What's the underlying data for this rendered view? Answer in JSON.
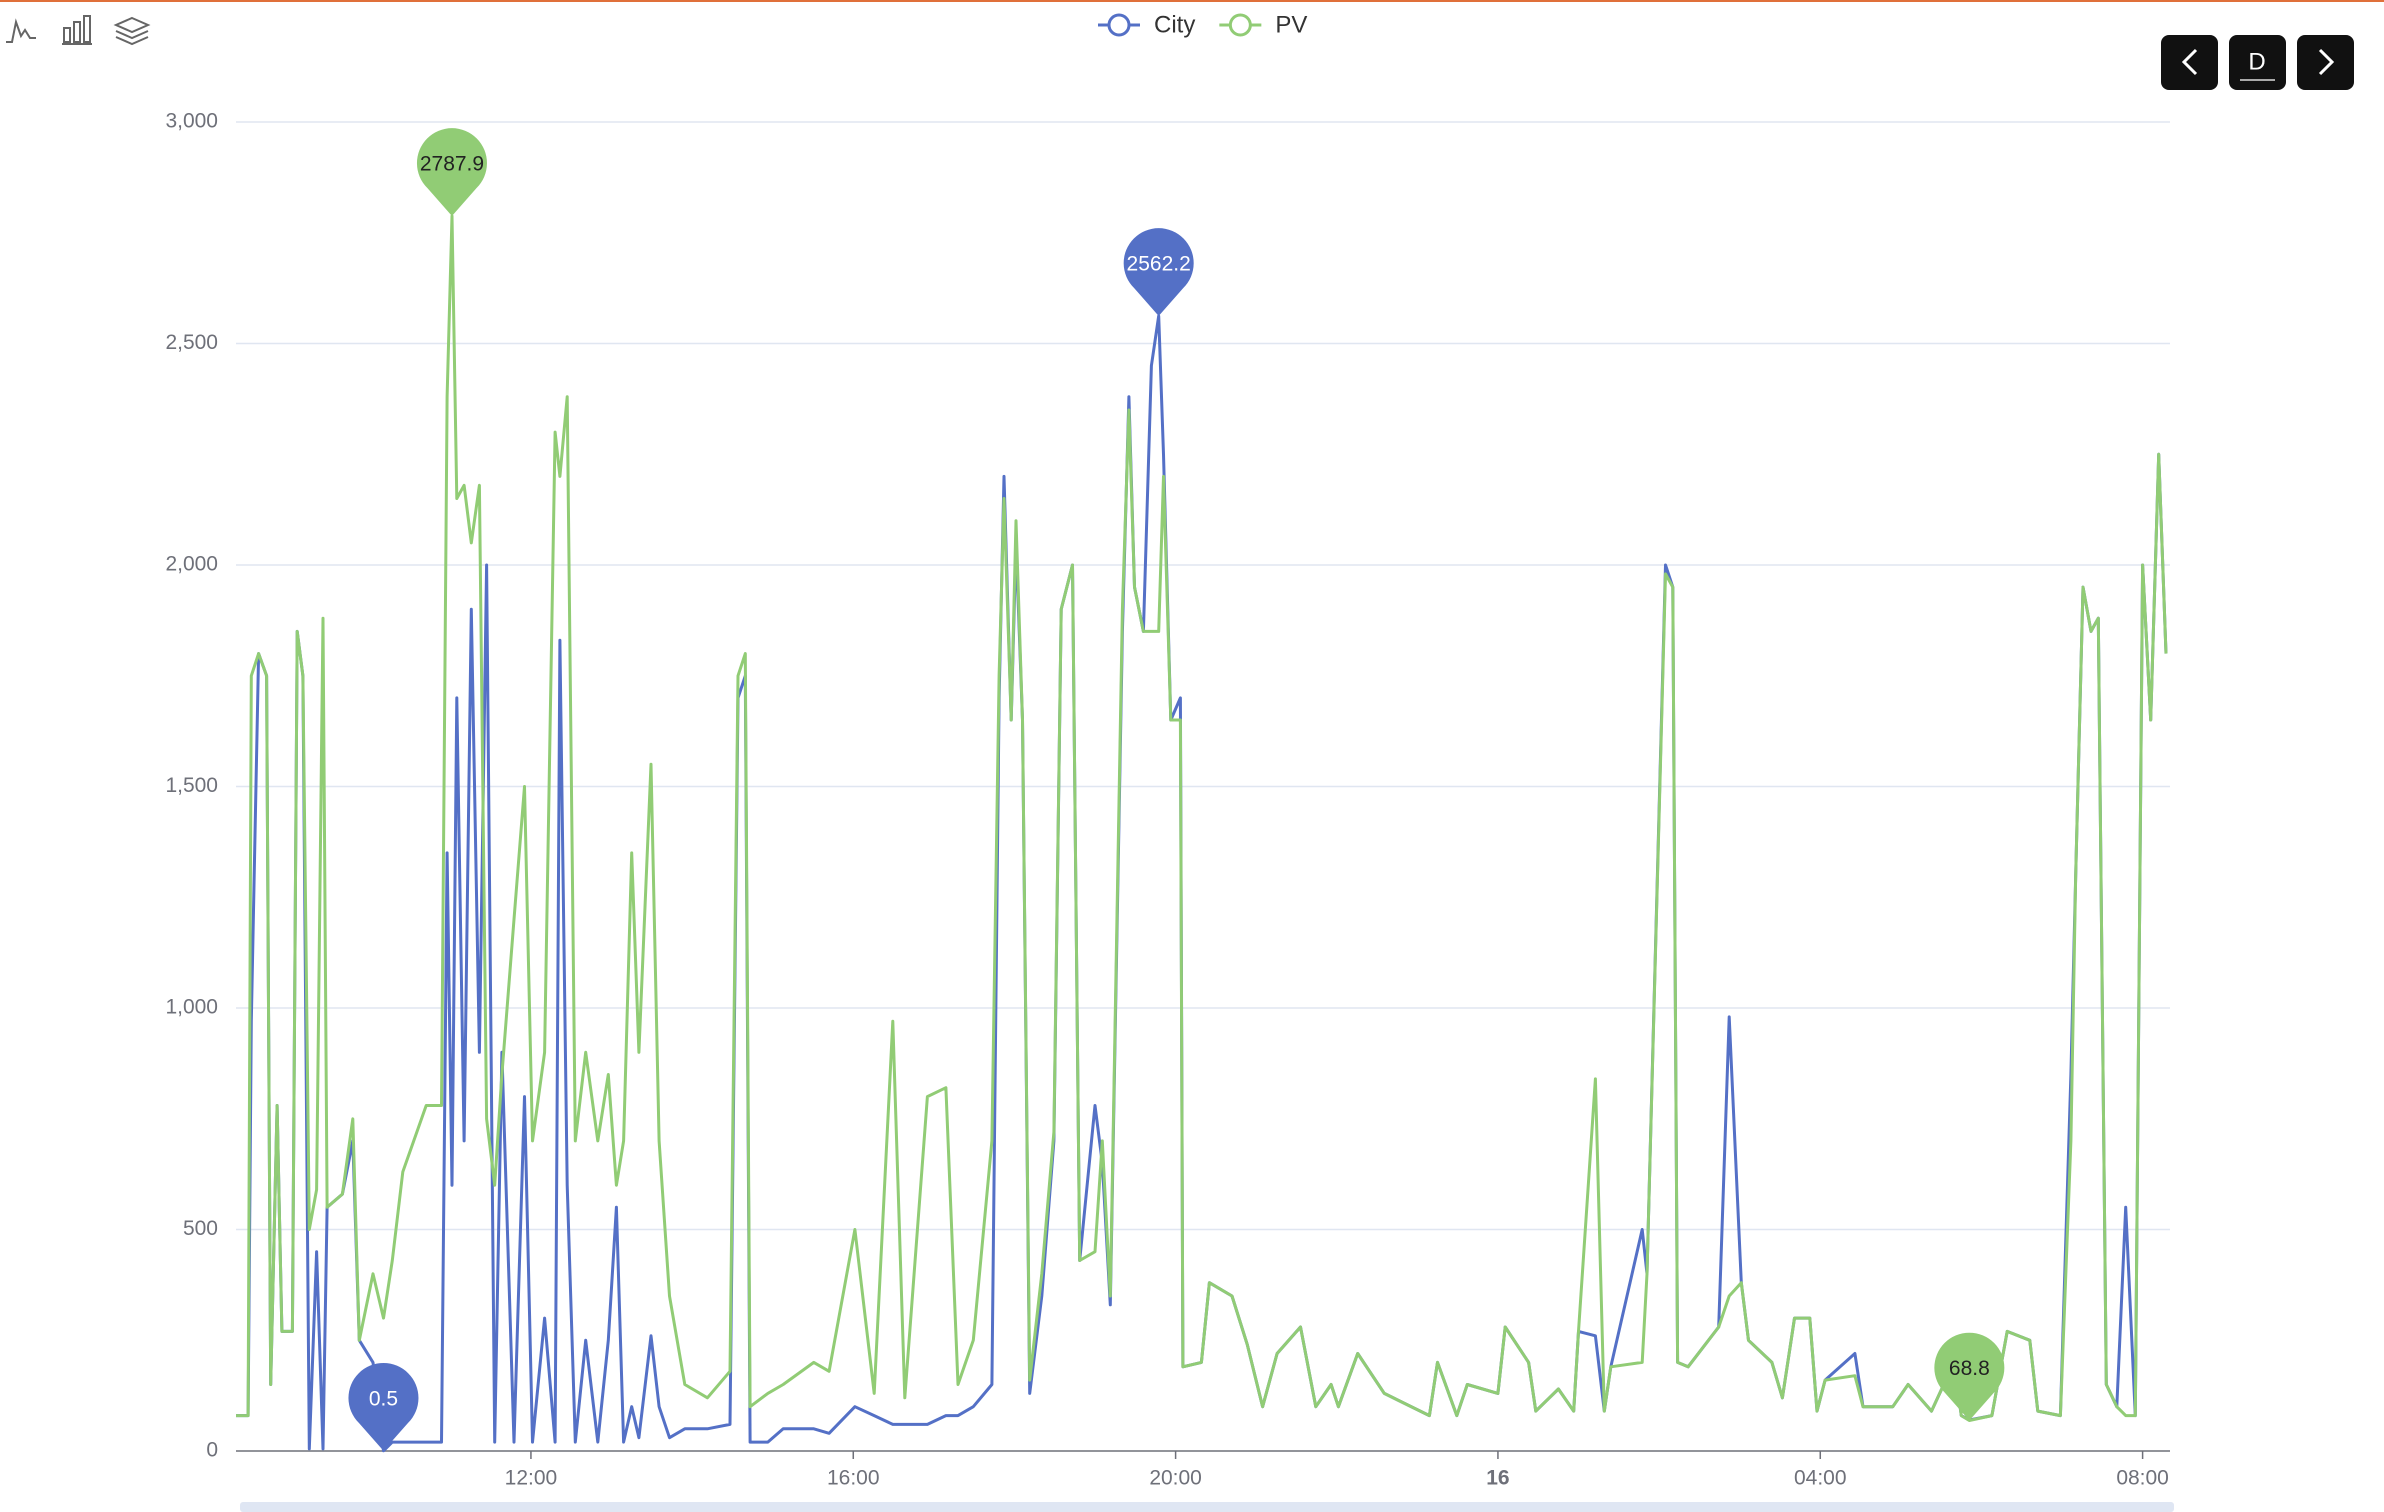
{
  "chart_data": {
    "type": "line",
    "x": [
      8.34,
      8.49,
      8.53,
      8.62,
      8.72,
      8.77,
      8.85,
      8.91,
      9.04,
      9.1,
      9.17,
      9.25,
      9.34,
      9.42,
      9.47,
      9.66,
      9.79,
      9.87,
      10.04,
      10.17,
      10.28,
      10.41,
      10.7,
      10.89,
      10.96,
      11.02,
      11.08,
      11.17,
      11.26,
      11.36,
      11.45,
      11.55,
      11.64,
      11.79,
      11.92,
      12.02,
      12.17,
      12.3,
      12.36,
      12.45,
      12.55,
      12.68,
      12.83,
      12.96,
      13.06,
      13.15,
      13.25,
      13.34,
      13.49,
      13.59,
      13.72,
      13.91,
      14.19,
      14.47,
      14.57,
      14.66,
      14.72,
      14.94,
      15.13,
      15.51,
      15.7,
      16.02,
      16.26,
      16.49,
      16.64,
      16.92,
      17.15,
      17.3,
      17.49,
      17.72,
      17.81,
      17.87,
      17.96,
      18.02,
      18.1,
      18.19,
      18.34,
      18.49,
      18.58,
      18.72,
      18.81,
      19.0,
      19.09,
      19.19,
      19.34,
      19.42,
      19.49,
      19.6,
      19.7,
      19.79,
      19.85,
      19.94,
      20.06,
      20.09,
      20.32,
      20.42,
      20.7,
      20.89,
      21.08,
      21.26,
      21.55,
      21.74,
      21.93,
      22.02,
      22.26,
      22.59,
      23.15,
      23.25,
      23.49,
      23.62,
      24.0,
      24.09,
      24.38,
      24.47,
      24.75,
      24.94,
      25.0,
      25.21,
      25.32,
      25.4,
      25.79,
      25.85,
      26.08,
      26.17,
      26.23,
      26.36,
      26.74,
      26.87,
      27.02,
      27.11,
      27.4,
      27.53,
      27.68,
      27.87,
      27.96,
      28.06,
      28.43,
      28.53,
      28.9,
      29.09,
      29.38,
      29.66,
      29.75,
      29.85,
      30.13,
      30.32,
      30.6,
      30.7,
      30.98,
      31.11,
      31.17,
      31.26,
      31.36,
      31.45,
      31.55,
      31.68,
      31.79,
      31.91,
      32.0,
      32.1,
      32.2,
      32.29
    ],
    "series": [
      {
        "name": "City",
        "color": "#5470c6",
        "mark_point": [
          "max",
          "min"
        ],
        "values": [
          80,
          80,
          970,
          1800,
          1750,
          150,
          780,
          270,
          270,
          1850,
          1750,
          5,
          450,
          5,
          550,
          580,
          700,
          250,
          200,
          0.5,
          20,
          20,
          20,
          20,
          1350,
          600,
          1700,
          700,
          1900,
          900,
          2000,
          20,
          900,
          20,
          800,
          20,
          300,
          20,
          1830,
          600,
          20,
          250,
          20,
          250,
          550,
          20,
          100,
          30,
          260,
          100,
          30,
          50,
          50,
          60,
          1700,
          1750,
          20,
          20,
          50,
          50,
          40,
          100,
          80,
          60,
          60,
          60,
          80,
          80,
          100,
          150,
          1700,
          2200,
          1650,
          2050,
          1650,
          130,
          350,
          700,
          1900,
          2000,
          430,
          780,
          650,
          330,
          1850,
          2380,
          1950,
          1850,
          2450,
          2562.2,
          2250,
          1650,
          1700,
          190,
          200,
          380,
          350,
          240,
          100,
          220,
          280,
          100,
          150,
          100,
          220,
          130,
          80,
          200,
          80,
          150,
          130,
          280,
          200,
          90,
          140,
          90,
          270,
          260,
          90,
          190,
          500,
          400,
          2000,
          1950,
          200,
          190,
          280,
          980,
          380,
          250,
          200,
          120,
          300,
          300,
          90,
          160,
          220,
          100,
          100,
          150,
          90,
          200,
          80,
          70,
          80,
          270,
          250,
          90,
          80,
          850,
          1300,
          1950,
          1850,
          1880,
          150,
          100,
          550,
          80,
          2000,
          1650,
          2250,
          1800
        ]
      },
      {
        "name": "PV",
        "color": "#91cc75",
        "mark_point": [
          "max",
          "min"
        ],
        "values": [
          80,
          80,
          1750,
          1800,
          1750,
          150,
          780,
          270,
          270,
          1850,
          1750,
          500,
          590,
          1880,
          550,
          580,
          750,
          250,
          400,
          300,
          430,
          630,
          780,
          780,
          2380,
          2787.9,
          2150,
          2180,
          2050,
          2180,
          750,
          600,
          850,
          1200,
          1500,
          700,
          900,
          2300,
          2200,
          2380,
          700,
          900,
          700,
          850,
          600,
          700,
          1350,
          900,
          1550,
          700,
          350,
          150,
          120,
          180,
          1750,
          1800,
          100,
          130,
          150,
          200,
          180,
          500,
          130,
          970,
          120,
          800,
          820,
          150,
          250,
          700,
          1750,
          2150,
          1650,
          2100,
          1650,
          160,
          400,
          720,
          1900,
          2000,
          430,
          450,
          700,
          350,
          1900,
          2350,
          1950,
          1850,
          1850,
          1850,
          2200,
          1650,
          1650,
          190,
          200,
          380,
          350,
          240,
          100,
          220,
          280,
          100,
          150,
          100,
          220,
          130,
          80,
          200,
          80,
          150,
          130,
          280,
          200,
          90,
          140,
          90,
          270,
          840,
          90,
          190,
          200,
          400,
          1980,
          1950,
          200,
          190,
          280,
          350,
          380,
          250,
          200,
          120,
          300,
          300,
          90,
          160,
          170,
          100,
          100,
          150,
          90,
          200,
          80,
          68.8,
          80,
          270,
          250,
          90,
          80,
          700,
          1300,
          1950,
          1850,
          1880,
          150,
          100,
          80,
          80,
          2000,
          1650,
          2250,
          1800
        ]
      }
    ],
    "xlim": [
      8.34,
      32.34
    ],
    "xticks": [
      {
        "value": 12,
        "label": "12:00"
      },
      {
        "value": 16,
        "label": "16:00"
      },
      {
        "value": 20,
        "label": "20:00"
      },
      {
        "value": 24,
        "label": "16"
      },
      {
        "value": 28,
        "label": "04:00"
      },
      {
        "value": 32,
        "label": "08:00"
      }
    ],
    "ylim": [
      0,
      3000
    ],
    "yticks": [
      0,
      500,
      {
        "value": 1000,
        "label": "1,000"
      },
      {
        "value": 1500,
        "label": "1,500"
      },
      {
        "value": 2000,
        "label": "2,000"
      },
      {
        "value": 2500,
        "label": "2,500"
      },
      {
        "value": 3000,
        "label": "3,000"
      }
    ],
    "grid": true
  },
  "controls": {
    "period": "D"
  }
}
